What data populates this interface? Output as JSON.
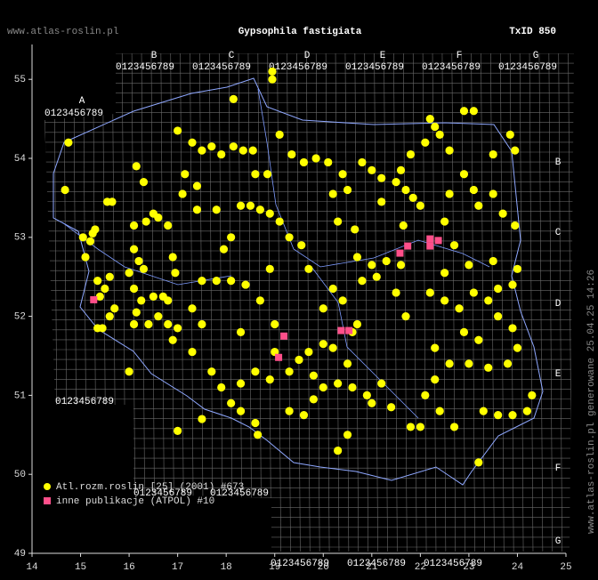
{
  "header": {
    "site": "www.atlas-roslin.pl",
    "title": "Gypsophila fastigiata",
    "taxon_id": "TxID 850"
  },
  "atpol": {
    "columns": [
      "A",
      "B",
      "C",
      "D",
      "E",
      "F",
      "G"
    ],
    "rows": [
      "B",
      "C",
      "D",
      "E",
      "F",
      "G"
    ],
    "digits": "0123456789"
  },
  "map": {
    "xlim": [
      14,
      25
    ],
    "ylim": [
      49,
      55.45
    ],
    "xticks": [
      14,
      15,
      16,
      17,
      18,
      19,
      20,
      21,
      22,
      23,
      24,
      25
    ],
    "yticks": [
      49,
      50,
      51,
      52,
      53,
      54,
      55
    ],
    "series": [
      {
        "name": "Atl.rozm.roslin [25] (2001) #673",
        "color": "#ffff00",
        "points": [
          [
            14.75,
            54.2
          ],
          [
            14.68,
            53.6
          ],
          [
            15.2,
            52.95
          ],
          [
            15.3,
            53.1
          ],
          [
            15.05,
            53.0
          ],
          [
            15.1,
            52.75
          ],
          [
            15.35,
            52.45
          ],
          [
            15.5,
            52.35
          ],
          [
            15.6,
            52.5
          ],
          [
            15.4,
            52.25
          ],
          [
            15.7,
            52.1
          ],
          [
            15.35,
            51.85
          ],
          [
            15.45,
            51.85
          ],
          [
            15.6,
            52.0
          ],
          [
            15.25,
            53.05
          ],
          [
            15.55,
            53.45
          ],
          [
            15.65,
            53.45
          ],
          [
            16.15,
            53.9
          ],
          [
            16.3,
            53.7
          ],
          [
            16.1,
            53.15
          ],
          [
            16.35,
            53.2
          ],
          [
            16.5,
            53.3
          ],
          [
            16.6,
            53.25
          ],
          [
            16.8,
            53.15
          ],
          [
            16.1,
            52.85
          ],
          [
            16.2,
            52.7
          ],
          [
            16.3,
            52.6
          ],
          [
            16.0,
            52.55
          ],
          [
            16.1,
            52.35
          ],
          [
            16.25,
            52.2
          ],
          [
            16.5,
            52.25
          ],
          [
            16.7,
            52.25
          ],
          [
            16.8,
            52.2
          ],
          [
            16.1,
            51.9
          ],
          [
            16.4,
            51.9
          ],
          [
            16.6,
            52.0
          ],
          [
            16.8,
            51.9
          ],
          [
            16.95,
            52.55
          ],
          [
            16.9,
            52.75
          ],
          [
            17.0,
            54.35
          ],
          [
            17.3,
            54.2
          ],
          [
            17.5,
            54.1
          ],
          [
            17.7,
            54.15
          ],
          [
            17.9,
            54.05
          ],
          [
            18.15,
            54.15
          ],
          [
            18.35,
            54.1
          ],
          [
            18.55,
            54.1
          ],
          [
            17.15,
            53.8
          ],
          [
            17.4,
            53.65
          ],
          [
            17.1,
            53.55
          ],
          [
            17.4,
            53.35
          ],
          [
            17.8,
            53.35
          ],
          [
            18.3,
            53.4
          ],
          [
            18.5,
            53.4
          ],
          [
            18.7,
            53.35
          ],
          [
            18.9,
            53.3
          ],
          [
            19.1,
            53.2
          ],
          [
            19.3,
            53.0
          ],
          [
            19.55,
            52.9
          ],
          [
            18.95,
            55.0
          ],
          [
            18.95,
            55.1
          ],
          [
            18.15,
            54.75
          ],
          [
            18.6,
            53.8
          ],
          [
            18.85,
            53.8
          ],
          [
            19.1,
            54.3
          ],
          [
            19.35,
            54.05
          ],
          [
            19.6,
            53.95
          ],
          [
            19.85,
            54.0
          ],
          [
            20.1,
            53.95
          ],
          [
            20.4,
            53.8
          ],
          [
            20.5,
            53.6
          ],
          [
            20.2,
            53.55
          ],
          [
            20.3,
            53.2
          ],
          [
            20.65,
            53.1
          ],
          [
            20.8,
            53.95
          ],
          [
            21.0,
            53.85
          ],
          [
            21.2,
            53.75
          ],
          [
            21.5,
            53.7
          ],
          [
            21.7,
            53.6
          ],
          [
            21.85,
            53.5
          ],
          [
            22.0,
            53.4
          ],
          [
            21.6,
            53.85
          ],
          [
            21.8,
            54.05
          ],
          [
            22.1,
            54.2
          ],
          [
            22.3,
            54.4
          ],
          [
            22.4,
            54.3
          ],
          [
            22.6,
            54.1
          ],
          [
            22.9,
            53.8
          ],
          [
            23.1,
            53.6
          ],
          [
            23.5,
            53.55
          ],
          [
            23.85,
            54.3
          ],
          [
            23.95,
            54.1
          ],
          [
            23.5,
            54.05
          ],
          [
            23.2,
            53.4
          ],
          [
            23.7,
            53.3
          ],
          [
            23.95,
            53.15
          ],
          [
            22.6,
            53.55
          ],
          [
            22.9,
            54.6
          ],
          [
            23.1,
            54.6
          ],
          [
            22.2,
            54.5
          ],
          [
            22.5,
            53.2
          ],
          [
            21.2,
            53.45
          ],
          [
            21.65,
            53.15
          ],
          [
            20.7,
            52.75
          ],
          [
            21.0,
            52.65
          ],
          [
            21.3,
            52.7
          ],
          [
            21.6,
            52.65
          ],
          [
            17.5,
            52.45
          ],
          [
            17.8,
            52.45
          ],
          [
            18.1,
            52.45
          ],
          [
            18.4,
            52.4
          ],
          [
            18.7,
            52.2
          ],
          [
            17.3,
            52.1
          ],
          [
            17.5,
            51.9
          ],
          [
            17.0,
            51.85
          ],
          [
            16.9,
            51.7
          ],
          [
            17.3,
            51.55
          ],
          [
            17.7,
            51.3
          ],
          [
            17.9,
            51.1
          ],
          [
            18.3,
            51.15
          ],
          [
            18.6,
            51.3
          ],
          [
            18.9,
            51.2
          ],
          [
            19.3,
            51.3
          ],
          [
            19.0,
            51.9
          ],
          [
            19.5,
            51.45
          ],
          [
            19.7,
            51.55
          ],
          [
            20.0,
            51.65
          ],
          [
            20.2,
            51.6
          ],
          [
            19.8,
            51.25
          ],
          [
            20.3,
            51.15
          ],
          [
            20.6,
            51.1
          ],
          [
            20.9,
            51.0
          ],
          [
            21.2,
            51.15
          ],
          [
            20.5,
            51.4
          ],
          [
            20.2,
            52.35
          ],
          [
            20.4,
            52.2
          ],
          [
            20.8,
            52.45
          ],
          [
            21.1,
            52.5
          ],
          [
            21.5,
            52.3
          ],
          [
            20.0,
            52.1
          ],
          [
            19.7,
            52.6
          ],
          [
            18.9,
            52.6
          ],
          [
            18.3,
            51.8
          ],
          [
            19.0,
            51.55
          ],
          [
            17.95,
            52.85
          ],
          [
            18.1,
            53.0
          ],
          [
            21.7,
            52.0
          ],
          [
            22.2,
            52.3
          ],
          [
            22.5,
            52.2
          ],
          [
            22.8,
            52.1
          ],
          [
            23.1,
            52.3
          ],
          [
            23.4,
            52.2
          ],
          [
            23.6,
            52.0
          ],
          [
            23.9,
            51.85
          ],
          [
            24.0,
            51.6
          ],
          [
            23.8,
            51.4
          ],
          [
            23.4,
            51.35
          ],
          [
            23.0,
            51.4
          ],
          [
            22.6,
            51.4
          ],
          [
            22.3,
            51.2
          ],
          [
            22.1,
            51.0
          ],
          [
            22.4,
            50.8
          ],
          [
            22.7,
            50.6
          ],
          [
            23.3,
            50.8
          ],
          [
            23.6,
            50.75
          ],
          [
            23.9,
            50.75
          ],
          [
            24.2,
            50.8
          ],
          [
            24.3,
            51.0
          ],
          [
            23.2,
            51.7
          ],
          [
            22.9,
            51.8
          ],
          [
            22.3,
            51.6
          ],
          [
            22.5,
            52.55
          ],
          [
            23.0,
            52.65
          ],
          [
            23.5,
            52.7
          ],
          [
            24.0,
            52.6
          ],
          [
            23.6,
            52.35
          ],
          [
            22.7,
            52.9
          ],
          [
            23.9,
            52.4
          ],
          [
            18.1,
            50.9
          ],
          [
            18.3,
            50.8
          ],
          [
            17.5,
            50.7
          ],
          [
            16.0,
            51.3
          ],
          [
            16.15,
            52.05
          ],
          [
            17.0,
            50.55
          ],
          [
            18.65,
            50.5
          ],
          [
            18.6,
            50.65
          ],
          [
            19.3,
            50.8
          ],
          [
            19.6,
            50.75
          ],
          [
            19.8,
            50.95
          ],
          [
            20.0,
            51.1
          ],
          [
            20.3,
            50.3
          ],
          [
            20.5,
            50.5
          ],
          [
            21.0,
            50.9
          ],
          [
            21.4,
            50.85
          ],
          [
            21.8,
            50.6
          ],
          [
            22.0,
            50.6
          ],
          [
            23.2,
            50.15
          ],
          [
            20.7,
            51.9
          ],
          [
            20.6,
            51.8
          ]
        ]
      },
      {
        "name": "inne publikacje (ATPOL) #10",
        "color": "#ff4f8a",
        "points": [
          [
            15.27,
            52.21
          ],
          [
            19.19,
            51.75
          ],
          [
            19.08,
            51.48
          ],
          [
            20.37,
            51.82
          ],
          [
            20.53,
            51.82
          ],
          [
            21.58,
            52.8
          ],
          [
            21.74,
            52.89
          ],
          [
            22.2,
            52.89
          ],
          [
            22.37,
            52.96
          ],
          [
            22.2,
            52.98
          ]
        ]
      }
    ]
  },
  "footer": "www.atlas-roslin.pl generowane 25.04.25 14:26"
}
